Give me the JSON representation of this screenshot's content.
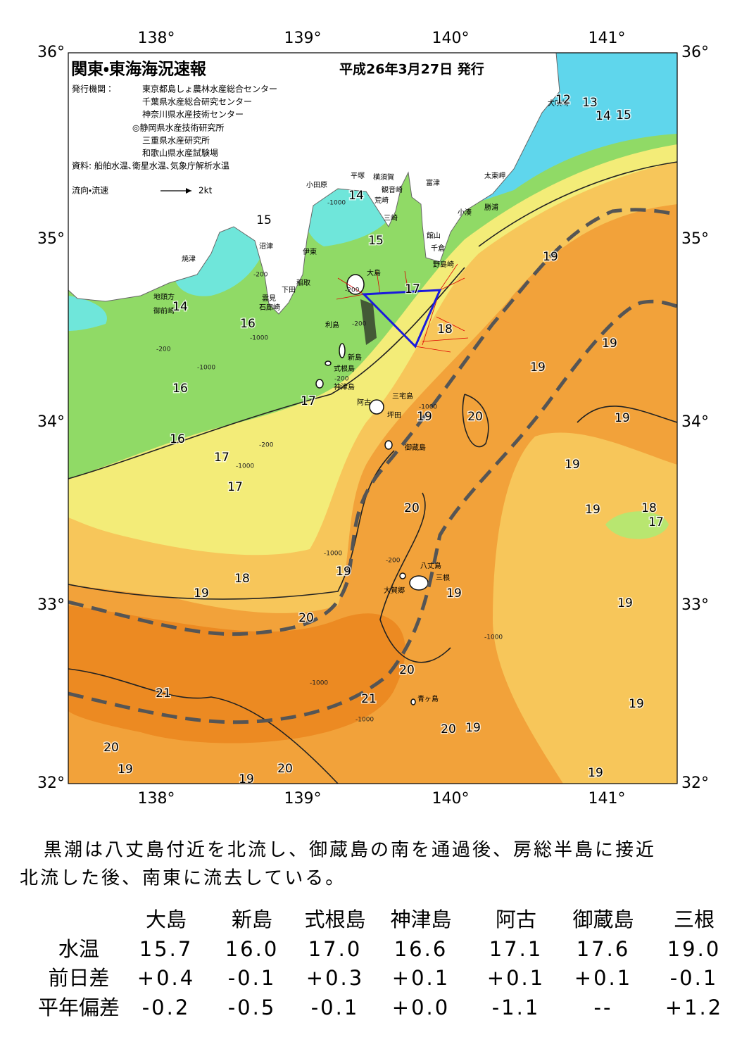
{
  "header": {
    "title": "関東・東海海況速報",
    "date": "平成26年3月27日 発行",
    "publisher_label": "発行機関：",
    "publishers": [
      "東京都島しょ農林水産総合センター",
      "千葉県水産総合研究センター",
      "神奈川県水産技術センター",
      "◎静岡県水産技術研究所",
      "三重県水産研究所",
      "和歌山県水産試験場"
    ],
    "sources": "資料: 船舶水温､衛星水温､気象庁解析水温",
    "legend_label": "流向・流速",
    "legend_scale": "2kt"
  },
  "map": {
    "longitude_labels": [
      "138°",
      "139°",
      "140°",
      "141°"
    ],
    "latitude_labels": [
      "36°",
      "35°",
      "34°",
      "33°",
      "32°"
    ],
    "place_names": [
      "犬吠埼",
      "太東岬",
      "勝浦",
      "小湊",
      "富津",
      "館山",
      "千倉",
      "野島崎",
      "横須賀",
      "観音崎",
      "荒崎",
      "三崎",
      "平塚",
      "小田原",
      "大島",
      "沼津",
      "伊東",
      "稲取",
      "下田",
      "雲見",
      "石廊崎",
      "焼津",
      "地頭方",
      "御前崎",
      "利島",
      "新島",
      "式根島",
      "神津島",
      "三宅島",
      "阿古",
      "坪田",
      "御蔵島",
      "八丈島",
      "三根",
      "大賀郷",
      "青ヶ島"
    ],
    "temperature_labels": [
      "12",
      "13",
      "14",
      "15",
      "14",
      "15",
      "15",
      "19",
      "17",
      "18",
      "14",
      "16",
      "19",
      "19",
      "16",
      "17",
      "19",
      "20",
      "19",
      "16",
      "17",
      "19",
      "17",
      "20",
      "19",
      "18",
      "17",
      "19",
      "18",
      "19",
      "19",
      "19",
      "20",
      "20",
      "21",
      "21",
      "19",
      "20",
      "19",
      "20",
      "19",
      "20",
      "19",
      "19"
    ],
    "depth_labels": [
      "-1000",
      "-200",
      "-200",
      "-1000",
      "-200",
      "-1000",
      "-200",
      "-200",
      "-1000",
      "-200",
      "-1000",
      "-1000",
      "-200",
      "-1000",
      "-1000",
      "-1000"
    ]
  },
  "summary": [
    "黒潮は八丈島付近を北流し、御蔵島の南を通過後、房総半島に接近",
    "北流した後、南東に流去している。"
  ],
  "table": {
    "stations": [
      "大島",
      "新島",
      "式根島",
      "神津島",
      "阿古",
      "御蔵島",
      "三根"
    ],
    "rows": [
      {
        "label": "水温",
        "values": [
          "15.7",
          "16.0",
          "17.0",
          "16.6",
          "17.1",
          "17.6",
          "19.0"
        ]
      },
      {
        "label": "前日差",
        "values": [
          "+0.4",
          "-0.1",
          "+0.3",
          "+0.1",
          "+0.1",
          "+0.1",
          "-0.1"
        ]
      },
      {
        "label": "平年偏差",
        "values": [
          "-0.2",
          "-0.5",
          "-0.1",
          "+0.0",
          "-1.1",
          "--",
          "+1.2"
        ]
      }
    ]
  }
}
